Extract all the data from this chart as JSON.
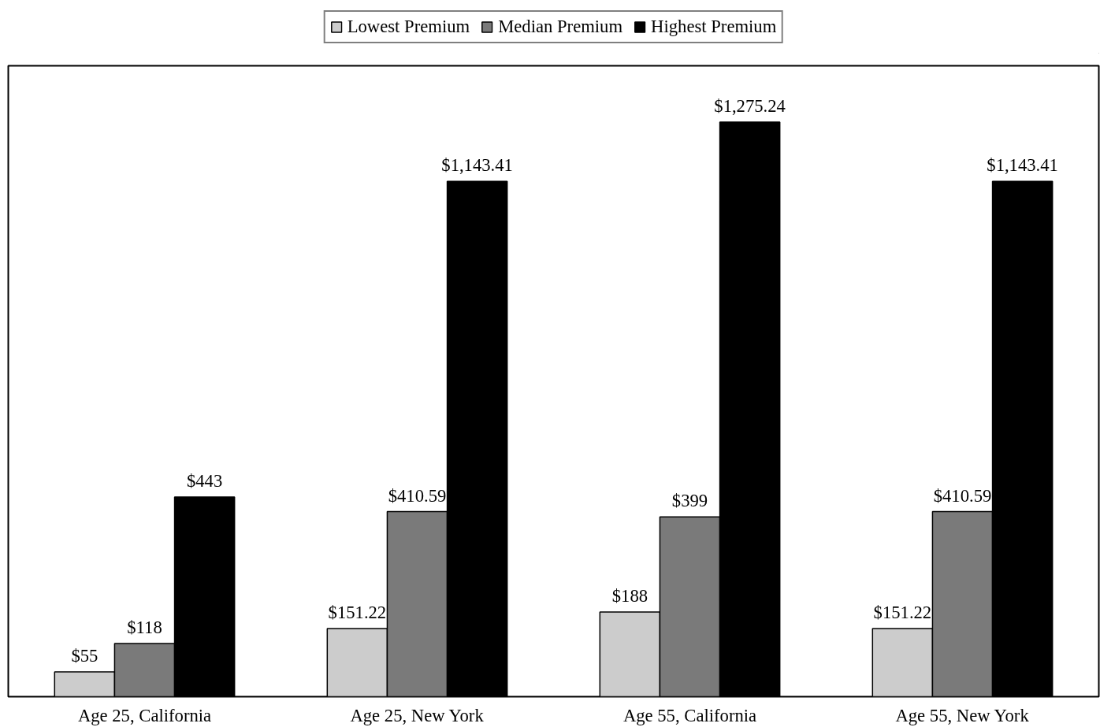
{
  "chart_data": {
    "type": "bar",
    "categories": [
      "Age 25, California",
      "Age 25, New York",
      "Age 55, California",
      "Age 55, New York"
    ],
    "series": [
      {
        "name": "Lowest Premium",
        "color": "#cccccc",
        "values": [
          55,
          151.22,
          188,
          151.22
        ],
        "value_labels": [
          "$55",
          "$151.22",
          "$188",
          "$151.22"
        ]
      },
      {
        "name": "Median Premium",
        "color": "#7a7a7a",
        "values": [
          118,
          410.59,
          399,
          410.59
        ],
        "value_labels": [
          "$118",
          "$410.59",
          "$399",
          "$410.59"
        ]
      },
      {
        "name": "Highest Premium",
        "color": "#000000",
        "values": [
          443,
          1143.41,
          1275.24,
          1143.41
        ],
        "value_labels": [
          "$443",
          "$1,143.41",
          "$1,275.24",
          "$1,143.41"
        ]
      }
    ],
    "ylim": [
      0,
      1400
    ],
    "tick_labels": "x",
    "grid": false,
    "legend": "top"
  }
}
